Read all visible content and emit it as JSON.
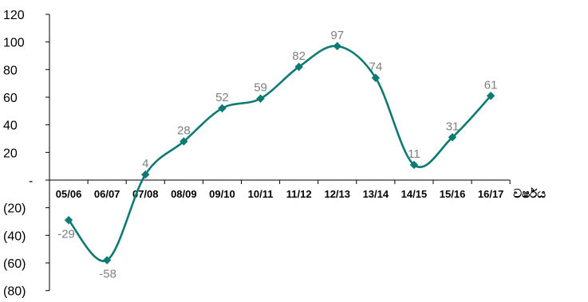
{
  "chart_data": {
    "type": "line",
    "categories": [
      "05/06",
      "06/07",
      "07/08",
      "08/09",
      "09/10",
      "10/11",
      "11/12",
      "12/13",
      "13/14",
      "14/15",
      "15/16",
      "16/17"
    ],
    "series": [
      {
        "values": [
          -29,
          -58,
          4,
          28,
          52,
          59,
          82,
          97,
          74,
          11,
          31,
          61
        ],
        "data_labels": [
          "-29",
          "-58",
          "4",
          "28",
          "52",
          "59",
          "82",
          "97",
          "74",
          "11",
          "31",
          "61"
        ],
        "color": "#0d7a73",
        "marker": "diamond",
        "smooth": true
      }
    ],
    "yticks": [
      {
        "value": 120,
        "label": "120"
      },
      {
        "value": 100,
        "label": "100"
      },
      {
        "value": 80,
        "label": "80"
      },
      {
        "value": 60,
        "label": "60"
      },
      {
        "value": 40,
        "label": "40"
      },
      {
        "value": 20,
        "label": "20"
      },
      {
        "value": 0,
        "label": "-"
      },
      {
        "value": -20,
        "label": "(20)"
      },
      {
        "value": -40,
        "label": "(40)"
      },
      {
        "value": -60,
        "label": "(60)"
      },
      {
        "value": -80,
        "label": "(80)"
      }
    ],
    "ylim": [
      -80,
      120
    ],
    "xlabel": "වර්ෂය",
    "ylabel": "",
    "title": "",
    "grid": false,
    "legend": "none",
    "axis_color": "#000000",
    "label_color": "#7f7f7f"
  }
}
